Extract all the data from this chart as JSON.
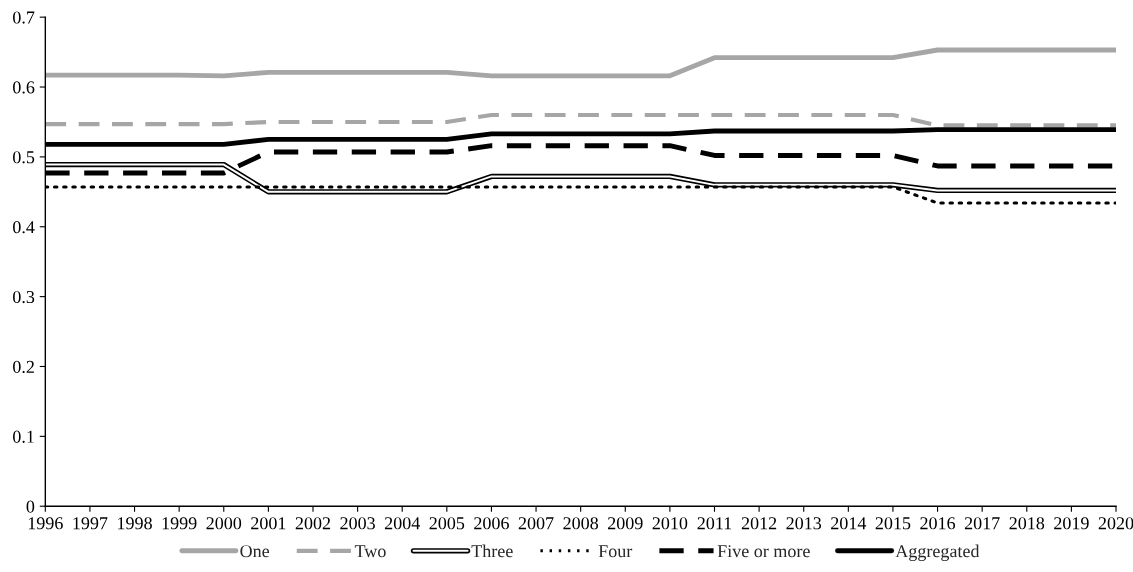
{
  "chart_data": {
    "type": "line",
    "categories": [
      "1996",
      "1997",
      "1998",
      "1999",
      "2000",
      "2001",
      "2002",
      "2003",
      "2004",
      "2005",
      "2006",
      "2007",
      "2008",
      "2009",
      "2010",
      "2011",
      "2012",
      "2013",
      "2014",
      "2015",
      "2016",
      "2017",
      "2018",
      "2019",
      "2020"
    ],
    "series": [
      {
        "name": "One",
        "color": "#a6a6a6",
        "line_style": "solid",
        "values": [
          0.617,
          0.617,
          0.617,
          0.617,
          0.616,
          0.621,
          0.621,
          0.621,
          0.621,
          0.621,
          0.616,
          0.616,
          0.616,
          0.616,
          0.616,
          0.642,
          0.642,
          0.642,
          0.642,
          0.642,
          0.653,
          0.653,
          0.653,
          0.653,
          0.653
        ]
      },
      {
        "name": "Two",
        "color": "#a6a6a6",
        "line_style": "dashed",
        "values": [
          0.547,
          0.547,
          0.547,
          0.547,
          0.547,
          0.55,
          0.55,
          0.55,
          0.55,
          0.55,
          0.56,
          0.56,
          0.56,
          0.56,
          0.56,
          0.56,
          0.56,
          0.56,
          0.56,
          0.56,
          0.545,
          0.545,
          0.545,
          0.545,
          0.545
        ]
      },
      {
        "name": "Three",
        "color": "#000000",
        "line_style": "solid",
        "values": [
          0.489,
          0.489,
          0.489,
          0.489,
          0.489,
          0.45,
          0.45,
          0.45,
          0.45,
          0.45,
          0.472,
          0.472,
          0.472,
          0.472,
          0.472,
          0.46,
          0.46,
          0.46,
          0.46,
          0.46,
          0.452,
          0.452,
          0.452,
          0.452,
          0.452
        ]
      },
      {
        "name": "Four",
        "color": "#000000",
        "line_style": "dotted",
        "values": [
          0.457,
          0.457,
          0.457,
          0.457,
          0.457,
          0.457,
          0.457,
          0.457,
          0.457,
          0.457,
          0.457,
          0.457,
          0.457,
          0.457,
          0.457,
          0.457,
          0.457,
          0.457,
          0.457,
          0.457,
          0.434,
          0.434,
          0.434,
          0.434,
          0.434
        ]
      },
      {
        "name": "Five or more",
        "color": "#000000",
        "line_style": "dashed",
        "values": [
          0.477,
          0.477,
          0.477,
          0.477,
          0.477,
          0.507,
          0.507,
          0.507,
          0.507,
          0.507,
          0.516,
          0.516,
          0.516,
          0.516,
          0.516,
          0.502,
          0.502,
          0.502,
          0.502,
          0.502,
          0.487,
          0.487,
          0.487,
          0.487,
          0.487
        ]
      },
      {
        "name": "Aggregated",
        "color": "#000000",
        "line_style": "solid",
        "values": [
          0.518,
          0.518,
          0.518,
          0.518,
          0.518,
          0.525,
          0.525,
          0.525,
          0.525,
          0.525,
          0.533,
          0.533,
          0.533,
          0.533,
          0.533,
          0.537,
          0.537,
          0.537,
          0.537,
          0.537,
          0.539,
          0.539,
          0.539,
          0.539,
          0.539
        ]
      }
    ],
    "ylim": [
      0,
      0.7
    ],
    "yticks": [
      0,
      0.1,
      0.2,
      0.3,
      0.4,
      0.5,
      0.6,
      0.7
    ],
    "grid": false,
    "legend": "bottom",
    "marker": "none"
  }
}
